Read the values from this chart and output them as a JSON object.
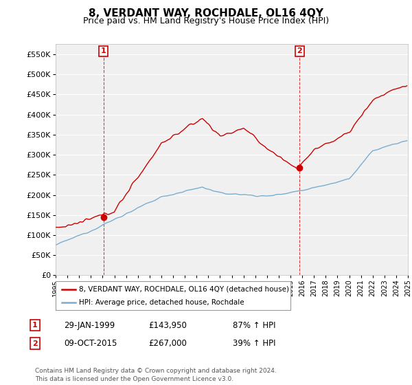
{
  "title": "8, VERDANT WAY, ROCHDALE, OL16 4QY",
  "subtitle": "Price paid vs. HM Land Registry's House Price Index (HPI)",
  "hpi_color": "#7aadcf",
  "price_color": "#cc0000",
  "vline_color": "#cc0000",
  "background_color": "#f0f0f0",
  "ylim": [
    0,
    575000
  ],
  "yticks": [
    0,
    50000,
    100000,
    150000,
    200000,
    250000,
    300000,
    350000,
    400000,
    450000,
    500000,
    550000
  ],
  "sale1": {
    "date_num": 1999.08,
    "price": 143950
  },
  "sale2": {
    "date_num": 2015.77,
    "price": 267000
  },
  "legend_label1": "8, VERDANT WAY, ROCHDALE, OL16 4QY (detached house)",
  "legend_label2": "HPI: Average price, detached house, Rochdale",
  "footnote": "Contains HM Land Registry data © Crown copyright and database right 2024.\nThis data is licensed under the Open Government Licence v3.0.",
  "table_rows": [
    {
      "num": "1",
      "date": "29-JAN-1999",
      "price": "£143,950",
      "pct": "87% ↑ HPI"
    },
    {
      "num": "2",
      "date": "09-OCT-2015",
      "price": "£267,000",
      "pct": "39% ↑ HPI"
    }
  ],
  "xlim": [
    1995,
    2025
  ],
  "xtick_start": 1995,
  "xtick_end": 2025
}
